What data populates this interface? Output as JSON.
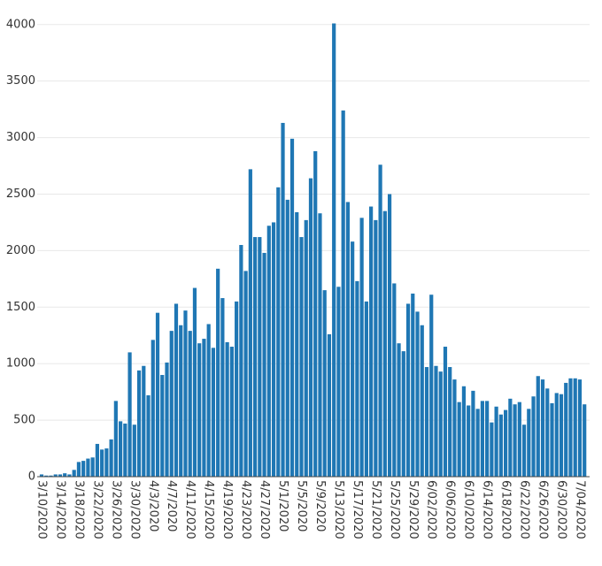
{
  "chart_data": {
    "type": "bar",
    "categories": [
      "3/10/2020",
      null,
      null,
      null,
      "3/14/2020",
      null,
      null,
      null,
      "3/18/2020",
      null,
      null,
      null,
      "3/22/2020",
      null,
      null,
      null,
      "3/26/2020",
      null,
      null,
      null,
      "3/30/2020",
      null,
      null,
      null,
      "4/3/2020",
      null,
      null,
      null,
      "4/7/2020",
      null,
      null,
      null,
      "4/11/2020",
      null,
      null,
      null,
      "4/15/2020",
      null,
      null,
      null,
      "4/19/2020",
      null,
      null,
      null,
      "4/23/2020",
      null,
      null,
      null,
      "4/27/2020",
      null,
      null,
      null,
      "5/1/2020",
      null,
      null,
      null,
      "5/5/2020",
      null,
      null,
      null,
      "5/9/2020",
      null,
      null,
      null,
      "5/13/2020",
      null,
      null,
      null,
      "5/17/2020",
      null,
      null,
      null,
      "5/21/2020",
      null,
      null,
      null,
      "5/25/2020",
      null,
      null,
      null,
      "5/29/2020",
      null,
      null,
      null,
      "6/02/2020",
      null,
      null,
      null,
      "6/06/2020",
      null,
      null,
      null,
      "6/10/2020",
      null,
      null,
      null,
      "6/14/2020",
      null,
      null,
      null,
      "6/18/2020",
      null,
      null,
      null,
      "6/22/2020",
      null,
      null,
      null,
      "6/26/2020",
      null,
      null,
      null,
      "6/30/2020",
      null,
      null,
      null,
      "7/04/2020",
      null
    ],
    "values": [
      20,
      10,
      10,
      20,
      20,
      30,
      20,
      60,
      130,
      140,
      160,
      170,
      290,
      240,
      250,
      330,
      670,
      490,
      470,
      1100,
      460,
      940,
      980,
      720,
      1210,
      1450,
      900,
      1010,
      1290,
      1530,
      1340,
      1470,
      1290,
      1670,
      1180,
      1220,
      1350,
      1140,
      1840,
      1580,
      1190,
      1150,
      1550,
      2050,
      1820,
      2720,
      2120,
      2120,
      1980,
      2220,
      2250,
      2560,
      3130,
      2450,
      2990,
      2340,
      2120,
      2270,
      2640,
      2880,
      2330,
      1650,
      1260,
      4010,
      1680,
      3240,
      2430,
      2080,
      1730,
      2290,
      1550,
      2390,
      2270,
      2760,
      2350,
      2500,
      1710,
      1180,
      1110,
      1530,
      1620,
      1460,
      1340,
      970,
      1610,
      980,
      930,
      1150,
      970,
      860,
      660,
      800,
      630,
      760,
      600,
      670,
      670,
      480,
      620,
      550,
      590,
      690,
      640,
      660,
      460,
      600,
      710,
      890,
      860,
      780,
      650,
      740,
      730,
      830,
      870,
      870,
      860,
      640
    ],
    "color": "#1f77b4",
    "ylim": [
      0,
      4100
    ],
    "yticks": [
      0,
      500,
      1000,
      1500,
      2000,
      2500,
      3000,
      3500,
      4000
    ],
    "grid": true
  }
}
